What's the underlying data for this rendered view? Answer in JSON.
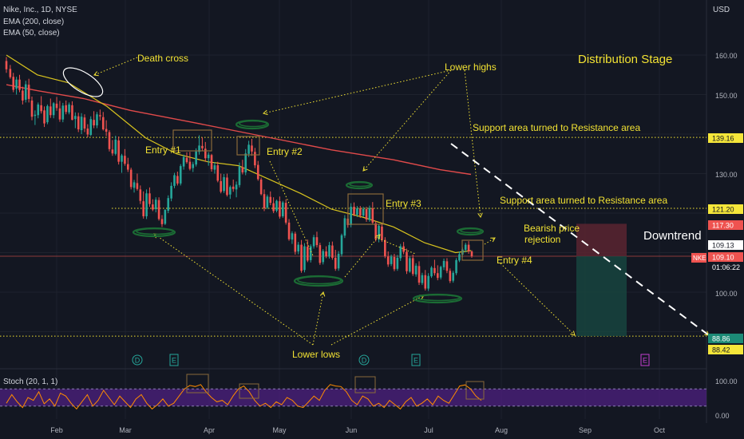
{
  "header": {
    "symbol_line": "Nike, Inc., 1D, NYSE",
    "ema200": "EMA (200, close)",
    "ema50": "EMA (50, close)",
    "stoch_label": "Stoch (20, 1, 1)",
    "currency": "USD"
  },
  "price_axis": {
    "ticks": [
      "160.00",
      "150.00",
      "139.16",
      "130.00",
      "121.20",
      "117.30",
      "109.13",
      "109.10",
      "01:06:22",
      "100.00",
      "88.86",
      "88.42"
    ],
    "nke_tag": "NKE"
  },
  "stoch_axis": {
    "ticks": [
      "100.00",
      "0.00"
    ]
  },
  "time_axis": {
    "ticks": [
      "Feb",
      "Mar",
      "Apr",
      "May",
      "Jun",
      "Jul",
      "Aug",
      "Sep",
      "Oct"
    ]
  },
  "events": [
    "D",
    "E",
    "D",
    "E",
    "E"
  ],
  "annotations": {
    "death_cross": "Death cross",
    "lower_highs": "Lower highs",
    "distribution": "Distribution Stage",
    "support_resistance_1": "Support area turned to Resistance area",
    "support_resistance_2": "Support area turned to Resistance area",
    "entry1": "Entry #1",
    "entry2": "Entry #2",
    "entry3": "Entry #3",
    "entry4": "Entry #4",
    "bearish_1": "Bearish price",
    "bearish_2": "rejection",
    "downtrend": "Downtrend",
    "lower_lows": "Lower lows"
  },
  "colors": {
    "background": "#131722",
    "up": "#26a69a",
    "down": "#ef5350",
    "ema50": "#d8c31e",
    "ema200": "#e04a4a",
    "annotation": "#f2e233",
    "stoch_band": "#4a1f7a",
    "stoch_line": "#ff8c00"
  },
  "chart_data": {
    "type": "candlestick",
    "title": "Nike, Inc., 1D, NYSE",
    "x_range": [
      "Jan",
      "Oct"
    ],
    "y_range": [
      86,
      168
    ],
    "levels": [
      139.16,
      121.2,
      109.1,
      88.86
    ],
    "last_price": 109.1,
    "ema200": {
      "name": "EMA (200, close)",
      "points": [
        [
          0,
          152.5
        ],
        [
          40,
          151
        ],
        [
          100,
          149
        ],
        [
          160,
          146
        ],
        [
          240,
          143
        ],
        [
          330,
          139.5
        ],
        [
          420,
          136
        ],
        [
          500,
          133.5
        ],
        [
          560,
          131
        ],
        [
          600,
          129.8
        ]
      ]
    },
    "ema50": {
      "name": "EMA (50, close)",
      "points": [
        [
          0,
          160
        ],
        [
          40,
          155
        ],
        [
          80,
          153
        ],
        [
          130,
          147
        ],
        [
          180,
          139
        ],
        [
          220,
          135
        ],
        [
          260,
          133
        ],
        [
          300,
          132
        ],
        [
          340,
          128.5
        ],
        [
          380,
          125
        ],
        [
          420,
          121
        ],
        [
          460,
          119
        ],
        [
          500,
          116.5
        ],
        [
          540,
          112.5
        ],
        [
          580,
          110
        ],
        [
          600,
          110.5
        ]
      ]
    },
    "candles_ohlc": [
      [
        0,
        158.5,
        159.5,
        155.5,
        156.4
      ],
      [
        5,
        156.5,
        157.5,
        154,
        154.4
      ],
      [
        9,
        154.5,
        155.5,
        150.6,
        151.2
      ],
      [
        13,
        151.5,
        154.5,
        150,
        153.8
      ],
      [
        17,
        153.8,
        155,
        150.6,
        151.2
      ],
      [
        21,
        151,
        152,
        147.5,
        148.5
      ],
      [
        25,
        148.7,
        153.5,
        148,
        152.6
      ],
      [
        29,
        152.5,
        154,
        148,
        148.9
      ],
      [
        33,
        148.5,
        149.5,
        143.5,
        144.4
      ],
      [
        37,
        144.6,
        146,
        142.3,
        144.9
      ],
      [
        41,
        144.8,
        148,
        144,
        147.5
      ],
      [
        45,
        147.3,
        149.6,
        145.2,
        145.8
      ],
      [
        49,
        146,
        147,
        141.8,
        142.7
      ],
      [
        53,
        143,
        147.5,
        142.5,
        147.1
      ],
      [
        57,
        147,
        149,
        144.1,
        144.8
      ],
      [
        61,
        144.8,
        148.1,
        144,
        147.8
      ],
      [
        65,
        147.7,
        149.4,
        145.9,
        146.6
      ],
      [
        69,
        146.5,
        148.4,
        143.1,
        143.7
      ],
      [
        73,
        143.7,
        147.9,
        143,
        147.2
      ],
      [
        77,
        147.3,
        148.5,
        145,
        145.6
      ],
      [
        81,
        145.5,
        148,
        145,
        147.5
      ],
      [
        85,
        147.3,
        148.3,
        143.5,
        143.6
      ],
      [
        89,
        143.8,
        145.5,
        141.5,
        144.6
      ],
      [
        93,
        144.5,
        145.4,
        140.5,
        141.2
      ],
      [
        97,
        141,
        145.3,
        140,
        144.4
      ],
      [
        101,
        144.2,
        145,
        140.5,
        141.4
      ],
      [
        105,
        141.4,
        142.5,
        139.2,
        139.9
      ],
      [
        109,
        139.8,
        144.5,
        139.5,
        143.8
      ],
      [
        113,
        143.6,
        145.8,
        141.5,
        142.2
      ],
      [
        117,
        142.2,
        145.6,
        141.5,
        145
      ],
      [
        121,
        144.8,
        146.2,
        143.5,
        144.5
      ],
      [
        125,
        144.3,
        145.6,
        140.9,
        141.2
      ],
      [
        129,
        141.3,
        143.5,
        139.5,
        140.6
      ],
      [
        133,
        140.5,
        141,
        135.6,
        136.2
      ],
      [
        137,
        136.1,
        138.5,
        134.5,
        135.1
      ],
      [
        141,
        135,
        139.6,
        134.6,
        138.6
      ],
      [
        145,
        138.4,
        139.4,
        132.3,
        133
      ],
      [
        149,
        133,
        135,
        130.2,
        134.6
      ],
      [
        153,
        134.5,
        136.2,
        132,
        132.5
      ],
      [
        157,
        132.4,
        134,
        130.4,
        131
      ],
      [
        161,
        131,
        131.5,
        126,
        126.6
      ],
      [
        165,
        126.4,
        128.4,
        125.2,
        127.8
      ],
      [
        169,
        127.6,
        130,
        125.7,
        126.1
      ],
      [
        173,
        126,
        127,
        122.3,
        123.1
      ],
      [
        177,
        123,
        125.5,
        118.6,
        119.2
      ],
      [
        181,
        119.2,
        126,
        118.5,
        125
      ],
      [
        185,
        125,
        126.5,
        121.6,
        122.3
      ],
      [
        189,
        122.2,
        123.5,
        120.5,
        120.9
      ],
      [
        193,
        121,
        124,
        120.2,
        123.4
      ],
      [
        197,
        123.3,
        124,
        118.1,
        118.5
      ],
      [
        201,
        118.5,
        119.5,
        116.5,
        117.2
      ],
      [
        205,
        117.3,
        121,
        117,
        120.8
      ],
      [
        209,
        120.6,
        124.5,
        120,
        123.8
      ],
      [
        213,
        123.7,
        127.8,
        123,
        126.9
      ],
      [
        217,
        126.9,
        130.2,
        126.3,
        129.6
      ],
      [
        221,
        129.4,
        130.5,
        127,
        127.5
      ],
      [
        225,
        127.5,
        132.4,
        127,
        131.9
      ],
      [
        229,
        131.8,
        134.8,
        131,
        134.2
      ],
      [
        233,
        134,
        135.4,
        132.5,
        132.9
      ],
      [
        237,
        133,
        135.5,
        130.8,
        131.2
      ],
      [
        241,
        131.4,
        133,
        130.4,
        132.4
      ],
      [
        245,
        132.3,
        136.4,
        131.8,
        135.6
      ],
      [
        249,
        135.5,
        139.7,
        134.8,
        137.1
      ],
      [
        253,
        137,
        139.2,
        135.8,
        136.4
      ],
      [
        257,
        136.3,
        138,
        133,
        133.9
      ],
      [
        261,
        133.9,
        135.4,
        132,
        134.8
      ],
      [
        265,
        134.7,
        135,
        130.5,
        131.1
      ],
      [
        269,
        131,
        132.9,
        130,
        132.1
      ],
      [
        273,
        132.1,
        133,
        127.8,
        128.2
      ],
      [
        277,
        128.1,
        130,
        125,
        125.4
      ],
      [
        281,
        125.6,
        129.9,
        125.1,
        129.1
      ],
      [
        285,
        129,
        130,
        124.2,
        124.6
      ],
      [
        289,
        124.7,
        127,
        123.6,
        126.6
      ],
      [
        293,
        126.7,
        128.5,
        125.4,
        126.1
      ],
      [
        297,
        126,
        128,
        124,
        127.2
      ],
      [
        301,
        127.1,
        132.8,
        126.5,
        131.8
      ],
      [
        305,
        131.6,
        133.5,
        129.8,
        130.3
      ],
      [
        309,
        130.3,
        136.2,
        129.6,
        135.1
      ],
      [
        313,
        135,
        138.3,
        134.2,
        137.3
      ],
      [
        317,
        137.1,
        138.8,
        134.5,
        135.6
      ],
      [
        321,
        135.5,
        136.5,
        131.4,
        132.1
      ],
      [
        325,
        132.2,
        133.2,
        128.2,
        128.6
      ],
      [
        329,
        128.5,
        129,
        124.5,
        124.8
      ],
      [
        333,
        124.8,
        126,
        120.5,
        121.2
      ],
      [
        337,
        121.4,
        124.7,
        121,
        124.2
      ],
      [
        341,
        124.1,
        125.5,
        122,
        122.6
      ],
      [
        345,
        122.5,
        124,
        120,
        120.5
      ],
      [
        349,
        120.6,
        123.4,
        120.2,
        123.1
      ],
      [
        353,
        123,
        124.2,
        118.6,
        119.1
      ],
      [
        357,
        119.2,
        123.1,
        118.8,
        122.7
      ],
      [
        361,
        122.6,
        123.5,
        117.1,
        117.6
      ],
      [
        365,
        117.6,
        118.5,
        113,
        113.4
      ],
      [
        369,
        113.3,
        115.4,
        112.2,
        114.9
      ],
      [
        373,
        114.8,
        115.3,
        109.5,
        110.2
      ],
      [
        377,
        110.3,
        112.7,
        109.6,
        112
      ],
      [
        381,
        112,
        113.2,
        104.9,
        105.4
      ],
      [
        385,
        105.6,
        112.4,
        105,
        111.6
      ],
      [
        389,
        111.5,
        113.3,
        107.6,
        108
      ],
      [
        393,
        108.1,
        112.1,
        107.5,
        111.6
      ],
      [
        397,
        111.6,
        114.5,
        111,
        113.9
      ],
      [
        401,
        113.9,
        115.3,
        111.3,
        111.9
      ],
      [
        405,
        111.9,
        112.5,
        106.9,
        107.4
      ],
      [
        409,
        107.6,
        110.9,
        107,
        110.4
      ],
      [
        413,
        110.3,
        111.6,
        108.6,
        109.1
      ],
      [
        417,
        109,
        112.7,
        108.5,
        111.9
      ],
      [
        421,
        111.8,
        112.8,
        108.2,
        108.7
      ],
      [
        425,
        108.7,
        110.7,
        105.4,
        105.9
      ],
      [
        429,
        106,
        110.4,
        105.4,
        109.7
      ],
      [
        433,
        109.6,
        114.8,
        109,
        114.4
      ],
      [
        437,
        114.3,
        119.5,
        113.7,
        118.7
      ],
      [
        441,
        118.6,
        120.3,
        116.3,
        117
      ],
      [
        445,
        117,
        122.5,
        116.4,
        121.6
      ],
      [
        449,
        121.6,
        122.7,
        119.2,
        119.7
      ],
      [
        453,
        119.6,
        121.8,
        119,
        121.2
      ],
      [
        457,
        121.2,
        121.8,
        118.8,
        119.4
      ],
      [
        461,
        119.4,
        121.6,
        119,
        121.1
      ],
      [
        465,
        121,
        121.6,
        117.8,
        118.4
      ],
      [
        469,
        118.3,
        121.9,
        117.8,
        121.3
      ],
      [
        473,
        121.2,
        122.8,
        117.1,
        117.6
      ],
      [
        477,
        117.4,
        118,
        112.8,
        113.4
      ],
      [
        481,
        113.4,
        117.2,
        112.6,
        116.8
      ],
      [
        485,
        116.6,
        117.4,
        112.7,
        113.2
      ],
      [
        489,
        113.2,
        113.9,
        108.6,
        109.1
      ],
      [
        493,
        109,
        110.3,
        106.4,
        107
      ],
      [
        497,
        107.1,
        109.5,
        106.6,
        109
      ],
      [
        501,
        108.9,
        109.7,
        105.3,
        105.8
      ],
      [
        505,
        105.9,
        109.4,
        105.4,
        108.7
      ],
      [
        509,
        108.6,
        112.2,
        107.9,
        111.6
      ],
      [
        513,
        111.6,
        112.7,
        109.6,
        110.2
      ],
      [
        517,
        110.2,
        111,
        104.6,
        105.3
      ],
      [
        521,
        105.2,
        109.1,
        104.9,
        108.6
      ],
      [
        525,
        108.6,
        109.5,
        104.1,
        104.6
      ],
      [
        529,
        104.5,
        107.3,
        103.9,
        106.7
      ],
      [
        533,
        106.6,
        107.8,
        101.8,
        102.4
      ],
      [
        537,
        102.3,
        104.9,
        101.8,
        104.3
      ],
      [
        541,
        104.3,
        105.6,
        100.4,
        100.9
      ],
      [
        545,
        100.9,
        104.8,
        100.3,
        104.1
      ],
      [
        549,
        104,
        106.6,
        103.6,
        106.2
      ],
      [
        553,
        106.1,
        108.2,
        104.2,
        104.8
      ],
      [
        557,
        104.8,
        106.8,
        103,
        103.6
      ],
      [
        561,
        103.7,
        106.7,
        103.2,
        106.4
      ],
      [
        565,
        106.3,
        108.5,
        105.6,
        107.9
      ],
      [
        569,
        107.8,
        108.6,
        104.8,
        105.4
      ],
      [
        573,
        105.4,
        106,
        102.3,
        102.8
      ],
      [
        577,
        102.9,
        105.4,
        102.4,
        104.9
      ],
      [
        581,
        104.8,
        108.6,
        104.3,
        108.1
      ],
      [
        585,
        108,
        110.3,
        107.6,
        109.6
      ],
      [
        589,
        109.5,
        111.3,
        108.8,
        110.8
      ],
      [
        593,
        110.7,
        112.5,
        110.1,
        112
      ],
      [
        597,
        112,
        112.9,
        109.7,
        110.3
      ],
      [
        601,
        110.3,
        110.6,
        108.7,
        109.1
      ]
    ],
    "trade_box": {
      "entry": 109.1,
      "stop": 117.3,
      "target": 88.86
    },
    "stoch": {
      "name": "Stoch (20, 1, 1)",
      "ylim": [
        0,
        100
      ],
      "band": [
        20,
        80
      ]
    }
  }
}
